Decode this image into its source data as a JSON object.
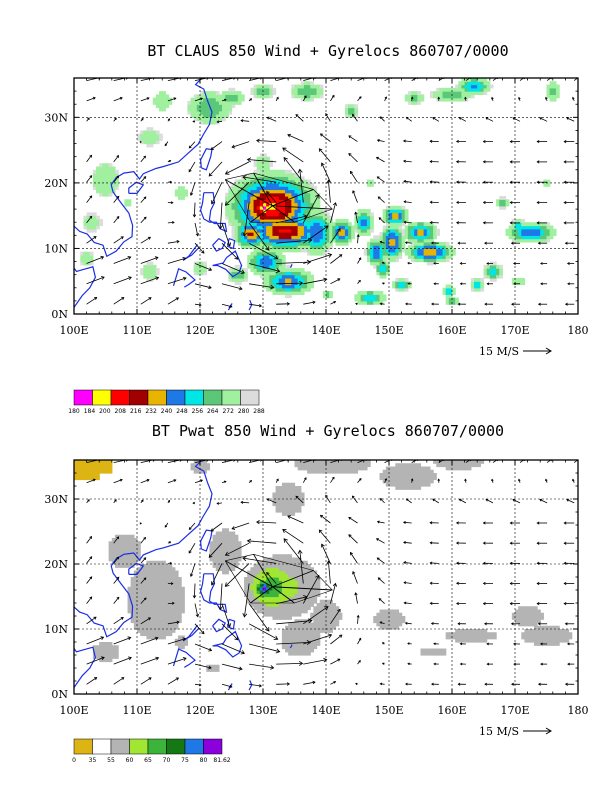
{
  "chart_data": [
    {
      "type": "heatmap",
      "title": "BT CLAUS 850 Wind + Gyrelocs 860707/0000",
      "variable": "cloud brightness temperature",
      "x_ticks": [
        "100E",
        "110E",
        "120E",
        "130E",
        "140E",
        "150E",
        "160E",
        "170E",
        "180"
      ],
      "y_ticks": [
        "0N",
        "10N",
        "20N",
        "30N"
      ],
      "xlim": [
        100,
        180
      ],
      "ylim": [
        0,
        36
      ],
      "grid": "dashed",
      "reference_vector": "15 M/S",
      "colorbar": {
        "labels": [
          "180",
          "184",
          "200",
          "208",
          "216",
          "232",
          "240",
          "248",
          "256",
          "264",
          "272",
          "280",
          "288"
        ],
        "colors": [
          "#ff00ff",
          "#ffff00",
          "#ff0000",
          "#a00000",
          "#e8b400",
          "#1e78e6",
          "#00e6e6",
          "#5ac878",
          "#a0f0a0",
          "#dcdcdc"
        ]
      },
      "gyre_center": {
        "lon": 131.5,
        "lat": 16.5
      },
      "gyre_vertex_points": [
        [
          124,
          20.5
        ],
        [
          128.5,
          21.5
        ],
        [
          138,
          19
        ],
        [
          141,
          16
        ],
        [
          135,
          14
        ],
        [
          128,
          14
        ]
      ]
    },
    {
      "type": "heatmap",
      "title": "BT Pwat 850 Wind + Gyrelocs 860707/0000",
      "variable": "precipitable water",
      "x_ticks": [
        "100E",
        "110E",
        "120E",
        "130E",
        "140E",
        "150E",
        "160E",
        "170E",
        "180"
      ],
      "y_ticks": [
        "0N",
        "10N",
        "20N",
        "30N"
      ],
      "xlim": [
        100,
        180
      ],
      "ylim": [
        0,
        36
      ],
      "grid": "dashed",
      "reference_vector": "15 M/S",
      "colorbar": {
        "labels": [
          "0",
          "35",
          "55",
          "60",
          "65",
          "70",
          "75",
          "80",
          "81.62"
        ],
        "colors": [
          "#dcb414",
          "#ffffff",
          "#b4b4b4",
          "#a0e632",
          "#3cb43c",
          "#147814",
          "#1e78e6",
          "#8c00dc"
        ]
      },
      "gyre_center": {
        "lon": 131.5,
        "lat": 16.5
      },
      "gyre_vertex_points": [
        [
          124,
          20.5
        ],
        [
          128.5,
          21.5
        ],
        [
          138,
          19
        ],
        [
          141,
          16
        ],
        [
          135,
          14
        ],
        [
          128,
          14
        ]
      ]
    }
  ]
}
